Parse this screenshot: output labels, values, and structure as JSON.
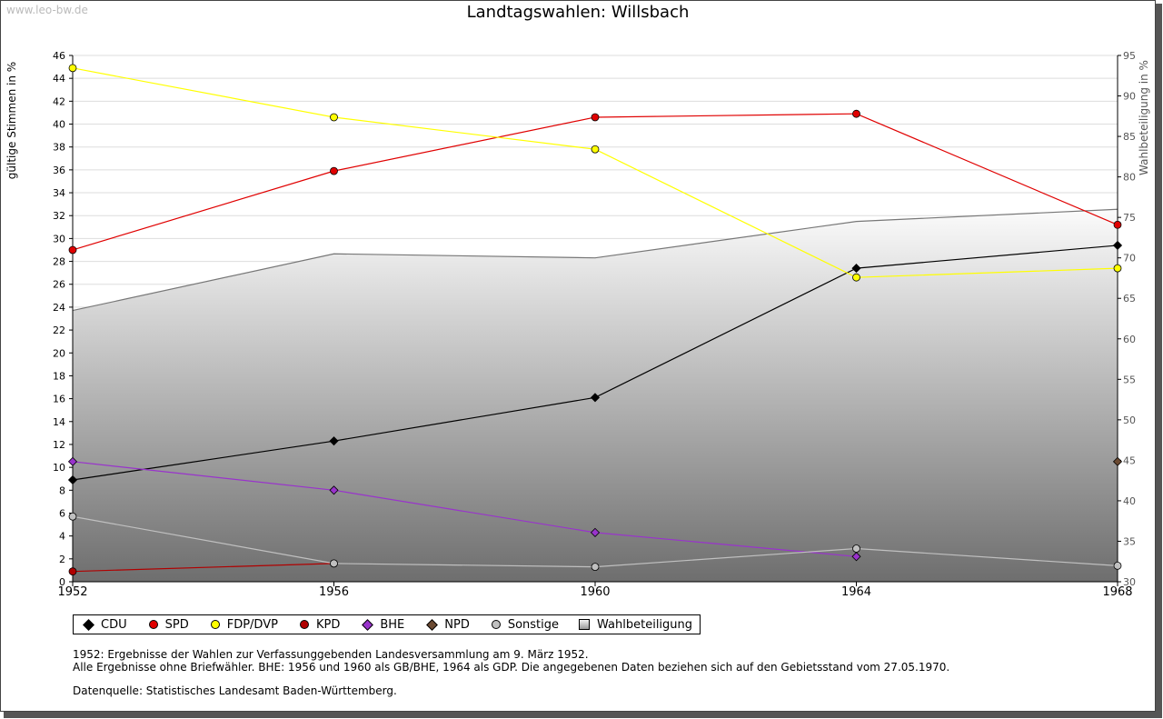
{
  "watermark": "www.leo-bw.de",
  "title": "Landtagswahlen: Willsbach",
  "chart_data": {
    "type": "line",
    "title": "Landtagswahlen: Willsbach",
    "x": [
      1952,
      1956,
      1960,
      1964,
      1968
    ],
    "ylabel": "gültige Stimmen in %",
    "y2label": "Wahlbeteiligung in %",
    "ylim": [
      0,
      46
    ],
    "yticks": [
      0,
      2,
      4,
      6,
      8,
      10,
      12,
      14,
      16,
      18,
      20,
      22,
      24,
      26,
      28,
      30,
      32,
      34,
      36,
      38,
      40,
      42,
      44,
      46
    ],
    "y2lim": [
      30,
      95
    ],
    "y2ticks": [
      30,
      35,
      40,
      45,
      50,
      55,
      60,
      65,
      70,
      75,
      80,
      85,
      90,
      95
    ],
    "grid": true,
    "legend_position": "bottom",
    "series": [
      {
        "name": "Wahlbeteiligung",
        "axis": "right",
        "kind": "area",
        "color": "#777777",
        "marker": "square",
        "values": [
          63.5,
          70.5,
          70.0,
          74.5,
          76.0
        ]
      },
      {
        "name": "CDU",
        "axis": "left",
        "color": "#000000",
        "marker": "diamond",
        "values": [
          8.9,
          12.3,
          16.1,
          27.4,
          29.4
        ]
      },
      {
        "name": "SPD",
        "axis": "left",
        "color": "#e00000",
        "marker": "circle",
        "values": [
          29.0,
          35.9,
          40.6,
          40.9,
          31.2
        ]
      },
      {
        "name": "FDP/DVP",
        "axis": "left",
        "color": "#ffff00",
        "marker": "circle",
        "values": [
          44.9,
          40.6,
          37.8,
          26.6,
          27.4
        ]
      },
      {
        "name": "KPD",
        "axis": "left",
        "color": "#b00000",
        "marker": "circle",
        "values": [
          0.9,
          1.6,
          null,
          null,
          null
        ]
      },
      {
        "name": "BHE",
        "axis": "left",
        "color": "#9933cc",
        "marker": "diamond",
        "values": [
          10.5,
          8.0,
          4.3,
          2.2,
          null
        ]
      },
      {
        "name": "NPD",
        "axis": "left",
        "color": "#6b4a32",
        "marker": "diamond",
        "values": [
          null,
          null,
          null,
          null,
          10.5
        ]
      },
      {
        "name": "Sonstige",
        "axis": "left",
        "color": "#c0c0c0",
        "marker": "circle",
        "values": [
          5.7,
          1.6,
          1.3,
          2.9,
          1.4
        ]
      }
    ]
  },
  "legend": [
    {
      "label": "CDU",
      "color": "#000000",
      "marker": "diamond"
    },
    {
      "label": "SPD",
      "color": "#e00000",
      "marker": "circle"
    },
    {
      "label": "FDP/DVP",
      "color": "#ffff00",
      "marker": "circle"
    },
    {
      "label": "KPD",
      "color": "#b00000",
      "marker": "circle"
    },
    {
      "label": "BHE",
      "color": "#9933cc",
      "marker": "diamond"
    },
    {
      "label": "NPD",
      "color": "#6b4a32",
      "marker": "diamond"
    },
    {
      "label": "Sonstige",
      "color": "#c0c0c0",
      "marker": "circle"
    },
    {
      "label": "Wahlbeteiligung",
      "color": "#999999",
      "marker": "square"
    }
  ],
  "notes": {
    "line1": "1952: Ergebnisse der Wahlen zur Verfassunggebenden Landesversammlung am 9. März 1952.",
    "line2": "Alle Ergebnisse ohne Briefwähler. BHE: 1956 und 1960 als GB/BHE, 1964 als GDP. Die angegebenen Daten beziehen sich auf den Gebietsstand vom 27.05.1970.",
    "line3": "Datenquelle: Statistisches Landesamt Baden-Württemberg."
  }
}
